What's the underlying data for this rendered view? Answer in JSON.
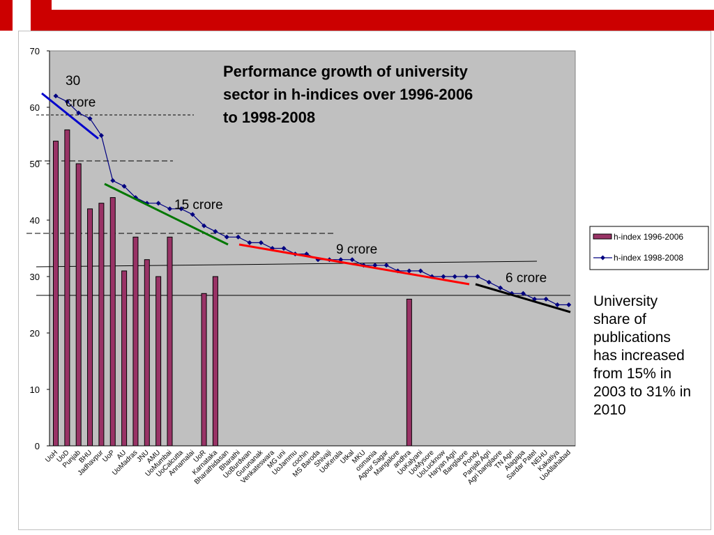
{
  "chart_data": {
    "type": "bar",
    "title": "Performance growth of university sector in h-indices over 1996-2006 to 1998-2008",
    "title_lines": [
      "Performance growth of university",
      "sector in h-indices over 1996-2006",
      "to 1998-2008"
    ],
    "ylim": [
      0,
      70
    ],
    "y_ticks": [
      0,
      10,
      20,
      30,
      40,
      50,
      60,
      70
    ],
    "categories": [
      "UoH",
      "UoD",
      "Punjab",
      "BHU",
      "Jadhavpur",
      "UoP",
      "AU",
      "UoMadras",
      "JNU",
      "AMU",
      "UoMumbai",
      "UoCalcutta",
      "Annamalai",
      "UoR",
      "Karnataka",
      "Bharathidasan",
      "Bharathi",
      "UoBurdwan",
      "Gurunanak",
      "Venkateswara",
      "MG uni",
      "UoJammu",
      "cochin",
      "MS Baroda",
      "Shivaji",
      "UoKerala",
      "Utkal",
      "MKU",
      "osmania",
      "Agour Sagar",
      "Mangalore",
      "andhra",
      "UoKalyani",
      "UoMysore",
      "UoLucknow",
      "Haryan Agri",
      "Banglaore",
      "Pondy",
      "Panjab Agri",
      "Agri banglaore",
      "TN Agri",
      "Alagapa",
      "Sardar Patel",
      "NEHU",
      "Kakatiya",
      "UoAllahabad"
    ],
    "series": [
      {
        "name": "h-index 1996-2006",
        "kind": "bar",
        "color": "#993366",
        "values": [
          54,
          56,
          50,
          42,
          43,
          44,
          31,
          37,
          33,
          30,
          37,
          null,
          null,
          27,
          30,
          null,
          null,
          null,
          null,
          null,
          null,
          null,
          null,
          null,
          null,
          null,
          null,
          null,
          null,
          null,
          null,
          26,
          null,
          null,
          null,
          null,
          null,
          null,
          null,
          null,
          null,
          null,
          null,
          null,
          null,
          null
        ]
      },
      {
        "name": "h-index 1998-2008",
        "kind": "line",
        "color": "#000080",
        "values": [
          62,
          61,
          59,
          58,
          55,
          47,
          46,
          44,
          43,
          43,
          42,
          42,
          41,
          39,
          38,
          37,
          37,
          36,
          36,
          35,
          35,
          34,
          34,
          33,
          33,
          33,
          33,
          32,
          32,
          32,
          31,
          31,
          31,
          30,
          30,
          30,
          30,
          30,
          29,
          28,
          27,
          27,
          26,
          26,
          25,
          25
        ]
      }
    ],
    "annotations": [
      "30 crore",
      "15 crore",
      "9 crore",
      "6 crore"
    ],
    "legend_position": "right",
    "plot_background": "#c0c0c0"
  },
  "side_note": "University share of publications has increased from 15% in 2003 to 31% in 2010"
}
